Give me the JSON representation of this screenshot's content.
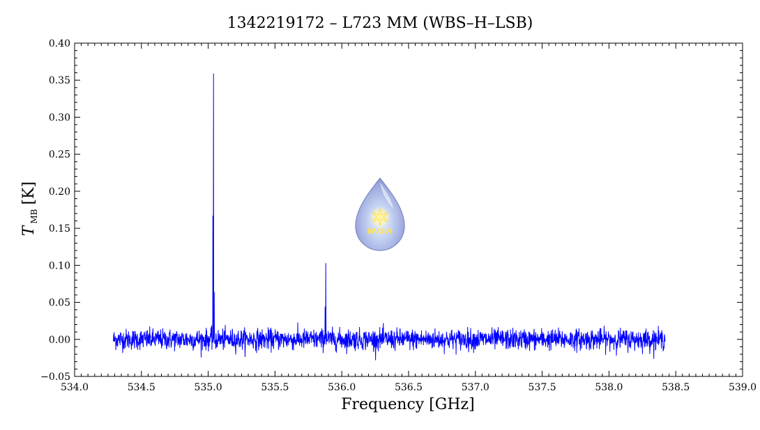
{
  "chart_data": {
    "type": "line",
    "title": "1342219172 – L723 MM (WBS–H–LSB)",
    "xlabel": "Frequency [GHz]",
    "ylabel_main": "T",
    "ylabel_sub": "MB",
    "ylabel_unit": "[K]",
    "xlim": [
      534.0,
      539.0
    ],
    "ylim": [
      -0.05,
      0.4
    ],
    "x_ticks": [
      534.0,
      534.5,
      535.0,
      535.5,
      536.0,
      536.5,
      537.0,
      537.5,
      538.0,
      538.5,
      539.0
    ],
    "x_tick_labels": [
      "534.0",
      "534.5",
      "535.0",
      "535.5",
      "536.0",
      "536.5",
      "537.0",
      "537.5",
      "538.0",
      "538.5",
      "539.0"
    ],
    "y_ticks": [
      -0.05,
      0.0,
      0.05,
      0.1,
      0.15,
      0.2,
      0.25,
      0.3,
      0.35,
      0.4
    ],
    "y_tick_labels": [
      "−0.05",
      "0.00",
      "0.05",
      "0.10",
      "0.15",
      "0.20",
      "0.25",
      "0.30",
      "0.35",
      "0.40"
    ],
    "grid": false,
    "series": [
      {
        "color": "#0000ff",
        "x_range": [
          534.29,
          538.42
        ],
        "noise_rms": 0.007,
        "peaks": [
          {
            "x": 535.04,
            "y": 0.359
          },
          {
            "x": 535.035,
            "y": 0.167
          },
          {
            "x": 535.045,
            "y": 0.064
          },
          {
            "x": 535.88,
            "y": 0.103
          },
          {
            "x": 535.875,
            "y": 0.044
          }
        ]
      }
    ]
  },
  "logo": {
    "text": "WISH",
    "drop_color": "#8f9bd9",
    "star_color": "#ffe24a"
  }
}
